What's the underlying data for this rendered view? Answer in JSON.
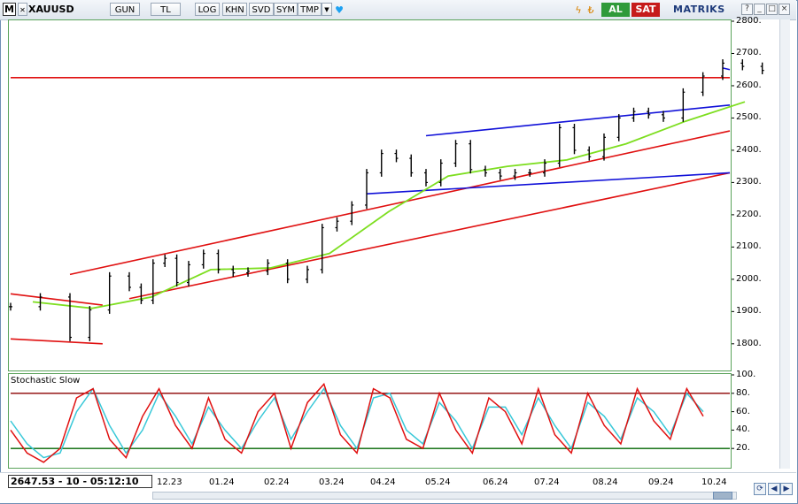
{
  "toolbar": {
    "logo_letter": "M",
    "symbol": "XAUUSD",
    "buttons": [
      "GUN",
      "TL",
      "LOG",
      "KHN",
      "SVD",
      "SYM",
      "TMP"
    ],
    "buy_label": "AL",
    "sell_label": "SAT",
    "brand": "MATRIKS",
    "window_controls": [
      "?",
      "_",
      "□",
      "×"
    ]
  },
  "price_readout": "2647.53 - 10 - 05:12:10",
  "indicator": {
    "title": "Stochastic Slow",
    "overbought": 80,
    "oversold": 20
  },
  "colors": {
    "price_bars": "#000000",
    "moving_average": "#7dde1f",
    "trend_red": "#e01010",
    "trend_blue": "#1010d8",
    "stoch_k": "#e01010",
    "stoch_d": "#38c8d8",
    "level_line_top": "#8b0000",
    "level_line_bottom": "#006400"
  },
  "chart_data": {
    "type": "line",
    "title": "",
    "xlabel": "",
    "ylabel": "",
    "ylim": [
      1720,
      2800
    ],
    "y_ticks": [
      1800,
      1900,
      2000,
      2100,
      2200,
      2300,
      2400,
      2500,
      2600,
      2700,
      2800
    ],
    "x_ticks": [
      "12.23",
      "01.24",
      "02.24",
      "03.24",
      "04.24",
      "05.24",
      "06.24",
      "07.24",
      "08.24",
      "09.24",
      "10.24"
    ],
    "stoch_ylim": [
      0,
      100
    ],
    "stoch_ticks": [
      20,
      40,
      60,
      80,
      100
    ],
    "close_series": [
      {
        "x": "10.23",
        "y": 1915
      },
      {
        "x": "10.23",
        "y": 1945
      },
      {
        "x": "11.23",
        "y": 1820
      },
      {
        "x": "11.23",
        "y": 1905
      },
      {
        "x": "11.23",
        "y": 2010
      },
      {
        "x": "12.23",
        "y": 1975
      },
      {
        "x": "12.23",
        "y": 1935
      },
      {
        "x": "12.23",
        "y": 2050
      },
      {
        "x": "12.23",
        "y": 2065
      },
      {
        "x": "12.23",
        "y": 1990
      },
      {
        "x": "01.24",
        "y": 2045
      },
      {
        "x": "01.24",
        "y": 2080
      },
      {
        "x": "01.24",
        "y": 2030
      },
      {
        "x": "01.24",
        "y": 2020
      },
      {
        "x": "02.24",
        "y": 2025
      },
      {
        "x": "02.24",
        "y": 2050
      },
      {
        "x": "02.24",
        "y": 2000
      },
      {
        "x": "03.24",
        "y": 2030
      },
      {
        "x": "03.24",
        "y": 2160
      },
      {
        "x": "03.24",
        "y": 2180
      },
      {
        "x": "03.24",
        "y": 2230
      },
      {
        "x": "04.24",
        "y": 2330
      },
      {
        "x": "04.24",
        "y": 2390
      },
      {
        "x": "04.24",
        "y": 2375
      },
      {
        "x": "04.24",
        "y": 2330
      },
      {
        "x": "05.24",
        "y": 2300
      },
      {
        "x": "05.24",
        "y": 2360
      },
      {
        "x": "05.24",
        "y": 2420
      },
      {
        "x": "05.24",
        "y": 2340
      },
      {
        "x": "06.24",
        "y": 2330
      },
      {
        "x": "06.24",
        "y": 2320
      },
      {
        "x": "06.24",
        "y": 2330
      },
      {
        "x": "06.24",
        "y": 2330
      },
      {
        "x": "07.24",
        "y": 2360
      },
      {
        "x": "07.24",
        "y": 2470
      },
      {
        "x": "07.24",
        "y": 2400
      },
      {
        "x": "07.24",
        "y": 2380
      },
      {
        "x": "08.24",
        "y": 2440
      },
      {
        "x": "08.24",
        "y": 2500
      },
      {
        "x": "08.24",
        "y": 2520
      },
      {
        "x": "08.24",
        "y": 2510
      },
      {
        "x": "09.24",
        "y": 2500
      },
      {
        "x": "09.24",
        "y": 2580
      },
      {
        "x": "09.24",
        "y": 2630
      },
      {
        "x": "10.24",
        "y": 2670
      },
      {
        "x": "10.24",
        "y": 2660
      },
      {
        "x": "10.24",
        "y": 2647.53
      }
    ],
    "moving_average": [
      {
        "x": "10.23",
        "y": 1930
      },
      {
        "x": "11.23",
        "y": 1910
      },
      {
        "x": "12.23",
        "y": 1945
      },
      {
        "x": "01.24",
        "y": 2030
      },
      {
        "x": "02.24",
        "y": 2035
      },
      {
        "x": "03.24",
        "y": 2080
      },
      {
        "x": "04.24",
        "y": 2210
      },
      {
        "x": "05.24",
        "y": 2320
      },
      {
        "x": "06.24",
        "y": 2350
      },
      {
        "x": "07.24",
        "y": 2370
      },
      {
        "x": "08.24",
        "y": 2420
      },
      {
        "x": "09.24",
        "y": 2490
      },
      {
        "x": "10.24",
        "y": 2550
      }
    ],
    "horizontal_lines": [
      {
        "y": 2625,
        "color": "#e01010"
      }
    ],
    "trendlines": [
      {
        "color": "#e01010",
        "from": {
          "x": "10.23",
          "y": 1955
        },
        "to": {
          "x": "11.23",
          "y": 1920
        }
      },
      {
        "color": "#e01010",
        "from": {
          "x": "10.23",
          "y": 1815
        },
        "to": {
          "x": "11.23",
          "y": 1800
        }
      },
      {
        "color": "#e01010",
        "from": {
          "x": "11.23",
          "y": 2015
        },
        "to": {
          "x": "10.24",
          "y": 2460
        }
      },
      {
        "color": "#e01010",
        "from": {
          "x": "12.23",
          "y": 1940
        },
        "to": {
          "x": "10.24",
          "y": 2330
        }
      },
      {
        "color": "#1010d8",
        "from": {
          "x": "04.24",
          "y": 2265
        },
        "to": {
          "x": "10.24",
          "y": 2330
        }
      },
      {
        "color": "#1010d8",
        "from": {
          "x": "05.24",
          "y": 2445
        },
        "to": {
          "x": "10.24",
          "y": 2540
        }
      },
      {
        "color": "#1010d8",
        "from": {
          "x": "10.24",
          "y": 2655
        },
        "to": {
          "x": "10.24",
          "y": 2650
        }
      }
    ],
    "stochastic_k": [
      40,
      15,
      5,
      20,
      75,
      85,
      30,
      10,
      55,
      85,
      45,
      20,
      75,
      30,
      15,
      60,
      80,
      20,
      70,
      90,
      35,
      15,
      85,
      75,
      30,
      20,
      80,
      40,
      15,
      75,
      60,
      25,
      85,
      35,
      15,
      80,
      45,
      25,
      85,
      50,
      30,
      85,
      55
    ],
    "stochastic_d": [
      50,
      25,
      10,
      15,
      60,
      85,
      45,
      15,
      40,
      80,
      55,
      25,
      65,
      40,
      20,
      50,
      75,
      30,
      60,
      85,
      45,
      20,
      75,
      80,
      40,
      25,
      70,
      50,
      20,
      65,
      65,
      35,
      75,
      45,
      20,
      70,
      55,
      30,
      75,
      60,
      35,
      80,
      60
    ]
  }
}
